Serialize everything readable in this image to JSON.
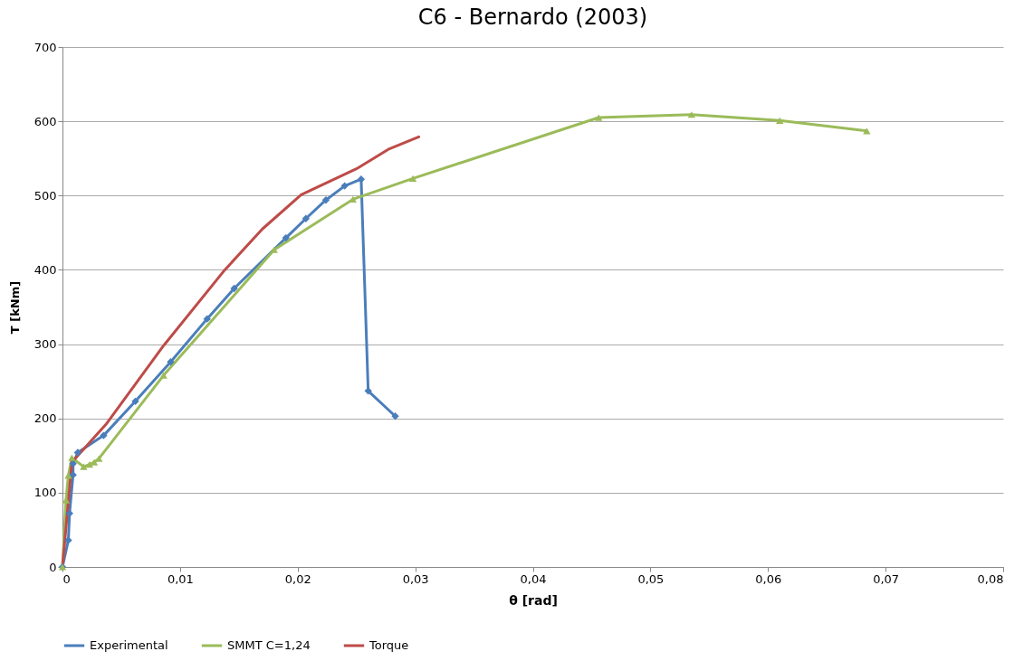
{
  "chart_data": {
    "type": "line",
    "title": "C6 - Bernardo (2003)",
    "xlabel": "θ  [rad]",
    "ylabel": "T  [kNm]",
    "xlim": [
      0,
      0.08
    ],
    "xticks": [
      {
        "value": 0,
        "label": "0"
      },
      {
        "value": 0.01,
        "label": "0,01"
      },
      {
        "value": 0.02,
        "label": "0,02"
      },
      {
        "value": 0.03,
        "label": "0,03"
      },
      {
        "value": 0.04,
        "label": "0,04"
      },
      {
        "value": 0.05,
        "label": "0,05"
      },
      {
        "value": 0.06,
        "label": "0,06"
      },
      {
        "value": 0.07,
        "label": "0,07"
      },
      {
        "value": 0.08,
        "label": "0,08"
      }
    ],
    "ylim": [
      0,
      700
    ],
    "yticks": [
      0,
      100,
      200,
      300,
      400,
      500,
      600,
      700
    ],
    "grid": "y",
    "legend": "bottom",
    "series": [
      {
        "name": "Experimental",
        "color": "#4a7ebb",
        "marker": "diamond",
        "x": [
          0,
          0.0005,
          0.0006,
          0.0009,
          0.0009,
          0.0013,
          0.0035,
          0.0062,
          0.0092,
          0.0123,
          0.0146,
          0.019,
          0.0207,
          0.0224,
          0.024,
          0.0254,
          0.026,
          0.0283
        ],
        "values": [
          0,
          36,
          72,
          124,
          139,
          154,
          177,
          223,
          276,
          334,
          375,
          443,
          469,
          494,
          513,
          522,
          237,
          203
        ]
      },
      {
        "name": "SMMT C=1,24",
        "color": "#9bbb59",
        "marker": "triangle",
        "x": [
          0,
          0.0003,
          0.0005,
          0.0008,
          0.0018,
          0.0023,
          0.0027,
          0.0031,
          0.0086,
          0.018,
          0.0247,
          0.0298,
          0.0456,
          0.0535,
          0.061,
          0.0684
        ],
        "values": [
          0,
          90,
          123,
          147,
          135,
          138,
          141,
          146,
          258,
          427,
          495,
          523,
          605,
          609,
          601,
          587
        ]
      },
      {
        "name": "Torque",
        "color": "#be4b48",
        "marker": "none",
        "x": [
          0,
          0.0008,
          0.0037,
          0.0086,
          0.0137,
          0.017,
          0.0203,
          0.025,
          0.0278,
          0.0303
        ],
        "values": [
          0,
          141,
          192,
          298,
          398,
          455,
          501,
          536,
          563,
          579
        ]
      }
    ]
  }
}
